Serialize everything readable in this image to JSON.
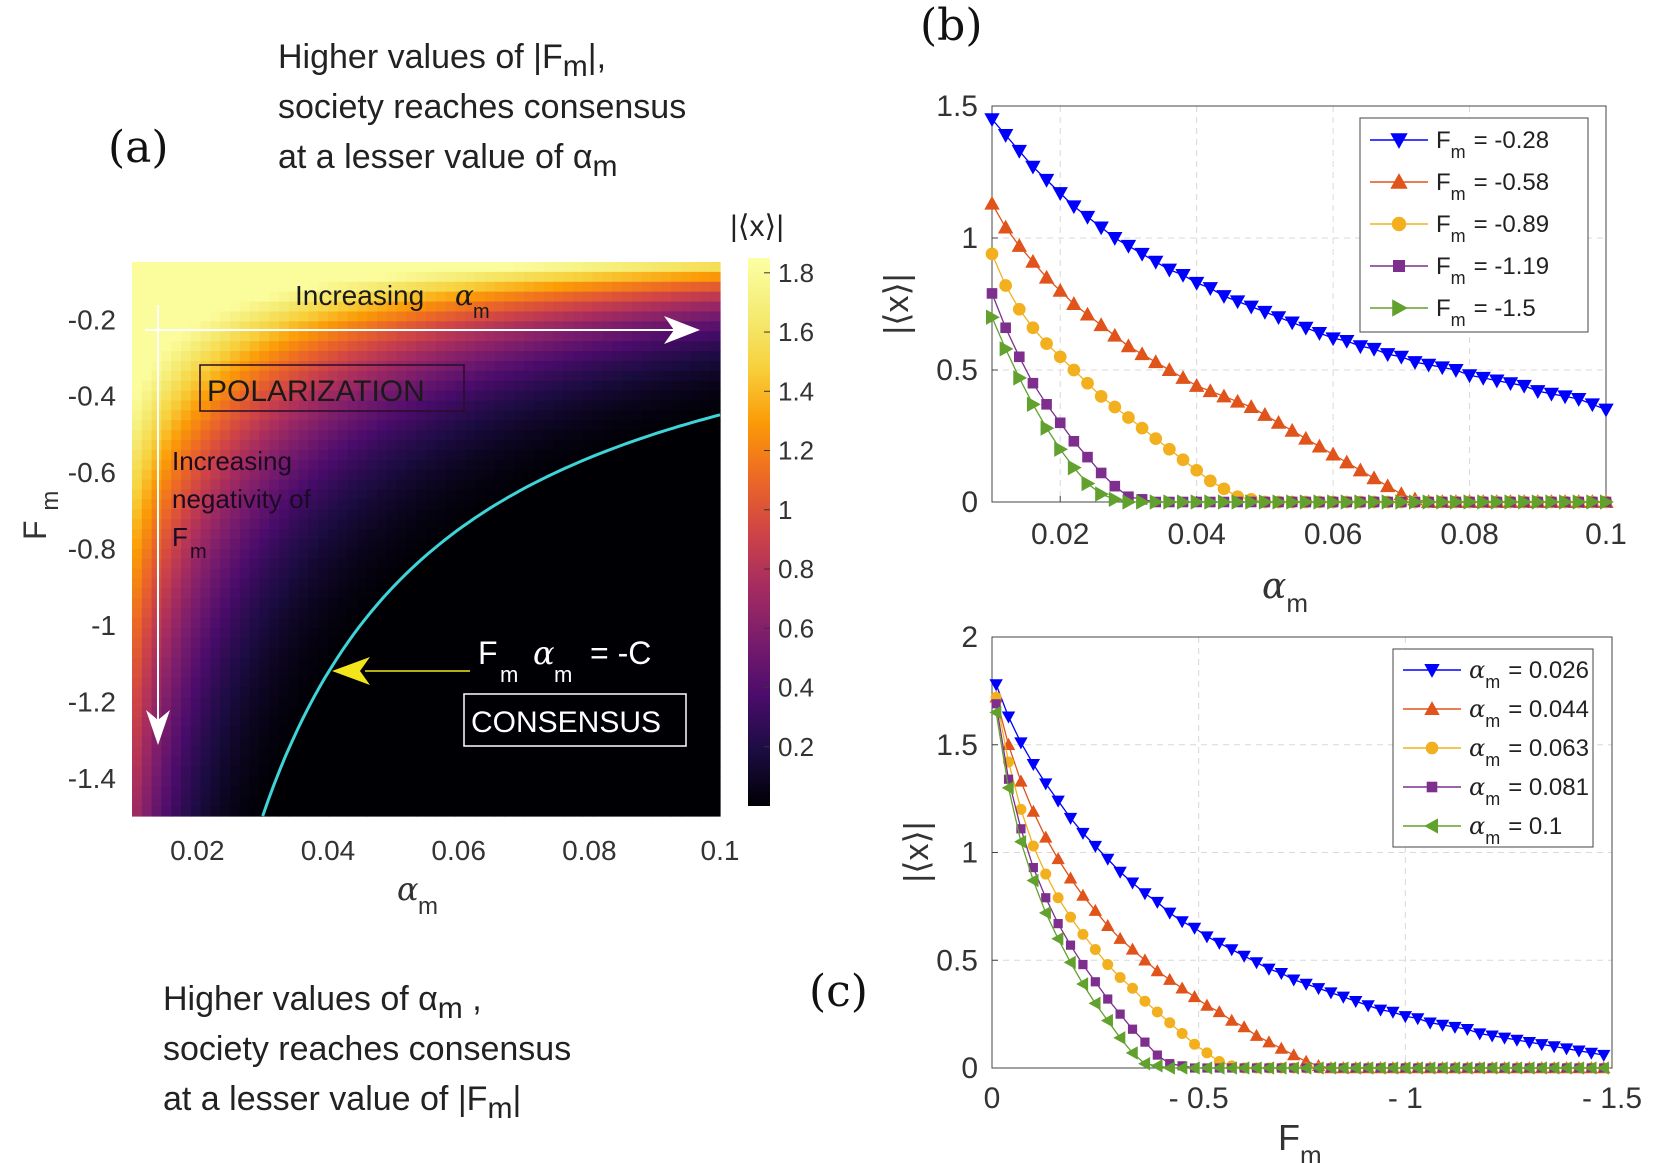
{
  "panel_labels": {
    "a": "(a)",
    "b": "(b)",
    "c": "(c)"
  },
  "annotations": {
    "top": [
      "Higher values of |F",
      "m",
      "|,",
      "society reaches consensus",
      "at a lesser value of α",
      "m"
    ],
    "bottom": [
      "Higher values of α",
      "m",
      " ,",
      "society reaches consensus",
      "at a lesser value of |F",
      "m",
      "|"
    ]
  },
  "heatmap": {
    "colorbar_title": "|⟨x⟩|",
    "labels": {
      "increasing_alpha": "Increasing",
      "alpha_sym": "α",
      "sub_m": "m",
      "polarization": "POLARIZATION",
      "consensus": "CONSENSUS",
      "neg_line1": "Increasing",
      "neg_line2": "negativity of",
      "neg_line3": "F",
      "eq_F": "F",
      "eq_alpha": "α",
      "eq_rhs": "= -C",
      "xlabel": "α",
      "ylabel": "F"
    },
    "colors": {
      "curve": "#3fd5d8",
      "arrow": "#f2e51c",
      "guide": "#ffffff"
    }
  },
  "chart_data": [
    {
      "id": "a",
      "type": "heatmap",
      "title": "",
      "xlabel": "αm",
      "ylabel": "Fm",
      "xlim": [
        0.01,
        0.1
      ],
      "ylim": [
        -1.5,
        -0.05
      ],
      "xticks": [
        0.02,
        0.04,
        0.06,
        0.08,
        0.1
      ],
      "xtick_labels": [
        "0.02",
        "0.04",
        "0.06",
        "0.08",
        "0.1"
      ],
      "yticks": [
        -0.2,
        -0.4,
        -0.6,
        -0.8,
        -1,
        -1.2,
        -1.4
      ],
      "ytick_labels": [
        "-0.2",
        "-0.4",
        "-0.6",
        "-0.8",
        "-1",
        "-1.2",
        "-1.4"
      ],
      "colorbar": {
        "min": 0,
        "max": 1.85,
        "ticks": [
          0.2,
          0.4,
          0.6,
          0.8,
          1,
          1.2,
          1.4,
          1.6,
          1.8
        ],
        "tick_labels": [
          "0.2",
          "0.4",
          "0.6",
          "0.8",
          "1",
          "1.2",
          "1.4",
          "1.6",
          "1.8"
        ],
        "colormap": "inferno"
      },
      "boundary": {
        "equation": "Fm αm = -C",
        "C": 0.045
      }
    },
    {
      "id": "b",
      "type": "line",
      "xlabel": "αm",
      "ylabel": "|⟨x⟩|",
      "xlim": [
        0.01,
        0.1
      ],
      "ylim": [
        0,
        1.5
      ],
      "xticks": [
        0.02,
        0.04,
        0.06,
        0.08,
        0.1
      ],
      "xtick_labels": [
        "0.02",
        "0.04",
        "0.06",
        "0.08",
        "0.1"
      ],
      "yticks": [
        0,
        0.5,
        1,
        1.5
      ],
      "ytick_labels": [
        "0",
        "0.5",
        "1",
        "1.5"
      ],
      "grid": true,
      "legend": "top-right",
      "x": [
        0.01,
        0.012,
        0.014,
        0.016,
        0.018,
        0.02,
        0.022,
        0.024,
        0.026,
        0.028,
        0.03,
        0.032,
        0.034,
        0.036,
        0.038,
        0.04,
        0.042,
        0.044,
        0.046,
        0.048,
        0.05,
        0.052,
        0.054,
        0.056,
        0.058,
        0.06,
        0.062,
        0.064,
        0.066,
        0.068,
        0.07,
        0.072,
        0.074,
        0.076,
        0.078,
        0.08,
        0.082,
        0.084,
        0.086,
        0.088,
        0.09,
        0.092,
        0.094,
        0.096,
        0.098,
        0.1
      ],
      "series": [
        {
          "name": "F",
          "sub": "m",
          "value": "= -0.28",
          "color": "#0000ff",
          "marker": "tri-down",
          "values": [
            1.45,
            1.39,
            1.33,
            1.27,
            1.22,
            1.17,
            1.12,
            1.08,
            1.04,
            1.0,
            0.97,
            0.94,
            0.91,
            0.88,
            0.86,
            0.83,
            0.81,
            0.78,
            0.76,
            0.74,
            0.72,
            0.7,
            0.68,
            0.66,
            0.64,
            0.62,
            0.61,
            0.59,
            0.58,
            0.56,
            0.55,
            0.53,
            0.52,
            0.51,
            0.5,
            0.48,
            0.47,
            0.46,
            0.45,
            0.44,
            0.42,
            0.41,
            0.4,
            0.39,
            0.37,
            0.35
          ]
        },
        {
          "name": "F",
          "sub": "m",
          "value": "= -0.58",
          "color": "#e0531a",
          "marker": "tri-up",
          "values": [
            1.13,
            1.04,
            0.97,
            0.91,
            0.85,
            0.8,
            0.75,
            0.71,
            0.67,
            0.63,
            0.59,
            0.56,
            0.53,
            0.5,
            0.47,
            0.44,
            0.42,
            0.4,
            0.38,
            0.36,
            0.33,
            0.3,
            0.27,
            0.24,
            0.21,
            0.18,
            0.15,
            0.12,
            0.09,
            0.06,
            0.03,
            0.01,
            0.0,
            0.0,
            0.0,
            0.0,
            0.0,
            0.0,
            0.0,
            0.0,
            0.0,
            0.0,
            0.0,
            0.0,
            0.0,
            0.0
          ]
        },
        {
          "name": "F",
          "sub": "m",
          "value": "= -0.89",
          "color": "#f2b01e",
          "marker": "circle",
          "values": [
            0.94,
            0.82,
            0.73,
            0.66,
            0.6,
            0.55,
            0.5,
            0.45,
            0.4,
            0.36,
            0.32,
            0.28,
            0.24,
            0.2,
            0.16,
            0.12,
            0.08,
            0.05,
            0.02,
            0.01,
            0.0,
            0.0,
            0.0,
            0.0,
            0.0,
            0.0,
            0.0,
            0.0,
            0.0,
            0.0,
            0.0,
            0.0,
            0.0,
            0.0,
            0.0,
            0.0,
            0.0,
            0.0,
            0.0,
            0.0,
            0.0,
            0.0,
            0.0,
            0.0,
            0.0,
            0.0
          ]
        },
        {
          "name": "F",
          "sub": "m",
          "value": "= -1.19",
          "color": "#7e2f8e",
          "marker": "square",
          "values": [
            0.79,
            0.66,
            0.55,
            0.45,
            0.37,
            0.3,
            0.23,
            0.17,
            0.11,
            0.06,
            0.02,
            0.01,
            0.0,
            0.0,
            0.0,
            0.0,
            0.0,
            0.0,
            0.0,
            0.0,
            0.0,
            0.0,
            0.0,
            0.0,
            0.0,
            0.0,
            0.0,
            0.0,
            0.0,
            0.0,
            0.0,
            0.0,
            0.0,
            0.0,
            0.0,
            0.0,
            0.0,
            0.0,
            0.0,
            0.0,
            0.0,
            0.0,
            0.0,
            0.0,
            0.0,
            0.0
          ]
        },
        {
          "name": "F",
          "sub": "m",
          "value": "= -1.5",
          "color": "#62a12e",
          "marker": "tri-right",
          "values": [
            0.7,
            0.58,
            0.47,
            0.37,
            0.28,
            0.2,
            0.13,
            0.07,
            0.03,
            0.01,
            0.0,
            0.0,
            0.0,
            0.0,
            0.0,
            0.0,
            0.0,
            0.0,
            0.0,
            0.0,
            0.0,
            0.0,
            0.0,
            0.0,
            0.0,
            0.0,
            0.0,
            0.0,
            0.0,
            0.0,
            0.0,
            0.0,
            0.0,
            0.0,
            0.0,
            0.0,
            0.0,
            0.0,
            0.0,
            0.0,
            0.0,
            0.0,
            0.0,
            0.0,
            0.0,
            0.0
          ]
        }
      ]
    },
    {
      "id": "c",
      "type": "line",
      "xlabel": "Fm",
      "ylabel": "|⟨x⟩|",
      "xlim": [
        0,
        -1.5
      ],
      "ylim": [
        0,
        2
      ],
      "xticks": [
        0,
        -0.5,
        -1,
        -1.5
      ],
      "xtick_labels": [
        "0",
        "- 0.5",
        "- 1",
        "- 1.5"
      ],
      "yticks": [
        0,
        0.5,
        1,
        1.5,
        2
      ],
      "ytick_labels": [
        "0",
        "0.5",
        "1",
        "1.5",
        "2"
      ],
      "grid": true,
      "legend": "top-right",
      "x": [
        -0.01,
        -0.04,
        -0.07,
        -0.1,
        -0.13,
        -0.16,
        -0.19,
        -0.22,
        -0.25,
        -0.28,
        -0.31,
        -0.34,
        -0.37,
        -0.4,
        -0.43,
        -0.46,
        -0.49,
        -0.52,
        -0.55,
        -0.58,
        -0.61,
        -0.64,
        -0.67,
        -0.7,
        -0.73,
        -0.76,
        -0.79,
        -0.82,
        -0.85,
        -0.88,
        -0.91,
        -0.94,
        -0.97,
        -1.0,
        -1.03,
        -1.06,
        -1.09,
        -1.12,
        -1.15,
        -1.18,
        -1.21,
        -1.24,
        -1.27,
        -1.3,
        -1.33,
        -1.36,
        -1.39,
        -1.42,
        -1.45,
        -1.48
      ],
      "series": [
        {
          "name": "α",
          "sub": "m",
          "value": "= 0.026",
          "color": "#0000ff",
          "marker": "tri-down",
          "values": [
            1.78,
            1.63,
            1.51,
            1.41,
            1.32,
            1.24,
            1.16,
            1.09,
            1.03,
            0.97,
            0.91,
            0.86,
            0.81,
            0.77,
            0.72,
            0.68,
            0.65,
            0.61,
            0.58,
            0.55,
            0.52,
            0.49,
            0.46,
            0.44,
            0.41,
            0.39,
            0.37,
            0.35,
            0.33,
            0.31,
            0.29,
            0.27,
            0.26,
            0.24,
            0.23,
            0.21,
            0.2,
            0.19,
            0.18,
            0.16,
            0.15,
            0.14,
            0.13,
            0.12,
            0.11,
            0.1,
            0.09,
            0.08,
            0.07,
            0.06
          ]
        },
        {
          "name": "α",
          "sub": "m",
          "value": "= 0.044",
          "color": "#e0531a",
          "marker": "tri-up",
          "values": [
            1.72,
            1.5,
            1.33,
            1.19,
            1.07,
            0.97,
            0.88,
            0.8,
            0.73,
            0.66,
            0.6,
            0.55,
            0.5,
            0.45,
            0.41,
            0.37,
            0.33,
            0.29,
            0.26,
            0.22,
            0.19,
            0.15,
            0.12,
            0.09,
            0.06,
            0.03,
            0.01,
            0.0,
            0.0,
            0.0,
            0.0,
            0.0,
            0.0,
            0.0,
            0.0,
            0.0,
            0.0,
            0.0,
            0.0,
            0.0,
            0.0,
            0.0,
            0.0,
            0.0,
            0.0,
            0.0,
            0.0,
            0.0,
            0.0,
            0.0
          ]
        },
        {
          "name": "α",
          "sub": "m",
          "value": "= 0.063",
          "color": "#f2b01e",
          "marker": "circle",
          "values": [
            1.72,
            1.42,
            1.2,
            1.03,
            0.9,
            0.79,
            0.7,
            0.62,
            0.55,
            0.48,
            0.42,
            0.37,
            0.31,
            0.26,
            0.21,
            0.16,
            0.11,
            0.07,
            0.03,
            0.01,
            0.0,
            0.0,
            0.0,
            0.0,
            0.0,
            0.0,
            0.0,
            0.0,
            0.0,
            0.0,
            0.0,
            0.0,
            0.0,
            0.0,
            0.0,
            0.0,
            0.0,
            0.0,
            0.0,
            0.0,
            0.0,
            0.0,
            0.0,
            0.0,
            0.0,
            0.0,
            0.0,
            0.0,
            0.0,
            0.0
          ]
        },
        {
          "name": "α",
          "sub": "m",
          "value": "= 0.081",
          "color": "#7e2f8e",
          "marker": "square",
          "values": [
            1.69,
            1.34,
            1.11,
            0.93,
            0.79,
            0.67,
            0.57,
            0.48,
            0.4,
            0.32,
            0.25,
            0.18,
            0.12,
            0.06,
            0.02,
            0.01,
            0.0,
            0.0,
            0.0,
            0.0,
            0.0,
            0.0,
            0.0,
            0.0,
            0.0,
            0.0,
            0.0,
            0.0,
            0.0,
            0.0,
            0.0,
            0.0,
            0.0,
            0.0,
            0.0,
            0.0,
            0.0,
            0.0,
            0.0,
            0.0,
            0.0,
            0.0,
            0.0,
            0.0,
            0.0,
            0.0,
            0.0,
            0.0,
            0.0,
            0.0
          ]
        },
        {
          "name": "α",
          "sub": "m",
          "value": "= 0.1",
          "color": "#62a12e",
          "marker": "tri-left",
          "values": [
            1.65,
            1.3,
            1.05,
            0.87,
            0.72,
            0.6,
            0.49,
            0.39,
            0.3,
            0.22,
            0.14,
            0.07,
            0.02,
            0.01,
            0.0,
            0.0,
            0.0,
            0.0,
            0.0,
            0.0,
            0.0,
            0.0,
            0.0,
            0.0,
            0.0,
            0.0,
            0.0,
            0.0,
            0.0,
            0.0,
            0.0,
            0.0,
            0.0,
            0.0,
            0.0,
            0.0,
            0.0,
            0.0,
            0.0,
            0.0,
            0.0,
            0.0,
            0.0,
            0.0,
            0.0,
            0.0,
            0.0,
            0.0,
            0.0,
            0.0
          ]
        }
      ]
    }
  ]
}
